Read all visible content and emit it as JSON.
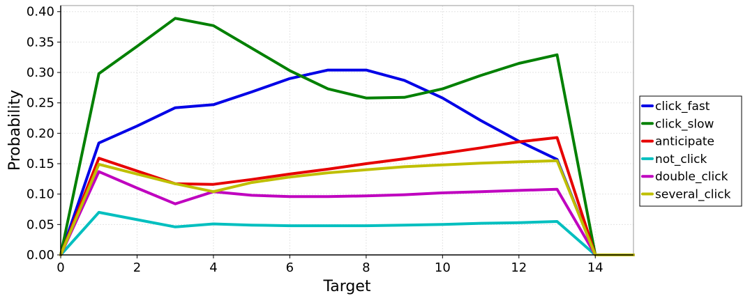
{
  "chart_data": {
    "type": "line",
    "title": "",
    "xlabel": "Target",
    "ylabel": "Probability",
    "xlim": [
      0,
      15
    ],
    "ylim": [
      0,
      0.41
    ],
    "x_ticks": [
      0,
      2,
      4,
      6,
      8,
      10,
      12,
      14
    ],
    "x_tick_labels": [
      "0",
      "2",
      "4",
      "6",
      "8",
      "10",
      "12",
      "14"
    ],
    "y_ticks": [
      0,
      0.05,
      0.1,
      0.15,
      0.2,
      0.25,
      0.3,
      0.35,
      0.4
    ],
    "y_tick_labels": [
      "0.00",
      "0.05",
      "0.10",
      "0.15",
      "0.20",
      "0.25",
      "0.30",
      "0.35",
      "0.40"
    ],
    "grid": true,
    "legend_position": "right, outside plot area",
    "x": [
      0,
      1,
      2,
      3,
      4,
      5,
      6,
      7,
      8,
      9,
      10,
      11,
      12,
      13,
      14,
      15
    ],
    "series": [
      {
        "name": "click_fast",
        "color": "#0000e6",
        "values": [
          0.0,
          0.184,
          0.212,
          0.242,
          0.247,
          0.268,
          0.29,
          0.304,
          0.304,
          0.287,
          0.258,
          0.221,
          0.187,
          0.157,
          0.0,
          0.0
        ]
      },
      {
        "name": "click_slow",
        "color": "#008000",
        "values": [
          0.0,
          0.298,
          0.343,
          0.389,
          0.377,
          0.34,
          0.303,
          0.273,
          0.258,
          0.259,
          0.273,
          0.295,
          0.315,
          0.329,
          0.0,
          0.0
        ]
      },
      {
        "name": "anticipate",
        "color": "#e60000",
        "values": [
          0.0,
          0.159,
          0.138,
          0.117,
          0.116,
          0.124,
          0.133,
          0.141,
          0.15,
          0.158,
          0.167,
          0.176,
          0.186,
          0.193,
          0.0,
          0.0
        ]
      },
      {
        "name": "not_click",
        "color": "#00bfbf",
        "values": [
          0.0,
          0.07,
          0.058,
          0.046,
          0.051,
          0.049,
          0.048,
          0.048,
          0.048,
          0.049,
          0.05,
          0.052,
          0.053,
          0.055,
          0.0,
          0.0
        ]
      },
      {
        "name": "double_click",
        "color": "#bf00bf",
        "values": [
          0.0,
          0.137,
          0.11,
          0.084,
          0.104,
          0.098,
          0.096,
          0.096,
          0.097,
          0.099,
          0.102,
          0.104,
          0.106,
          0.108,
          0.0,
          0.0
        ]
      },
      {
        "name": "several_click",
        "color": "#bfbf00",
        "values": [
          0.0,
          0.149,
          0.133,
          0.117,
          0.104,
          0.119,
          0.128,
          0.135,
          0.14,
          0.145,
          0.148,
          0.151,
          0.153,
          0.155,
          0.0,
          0.0
        ]
      }
    ]
  }
}
